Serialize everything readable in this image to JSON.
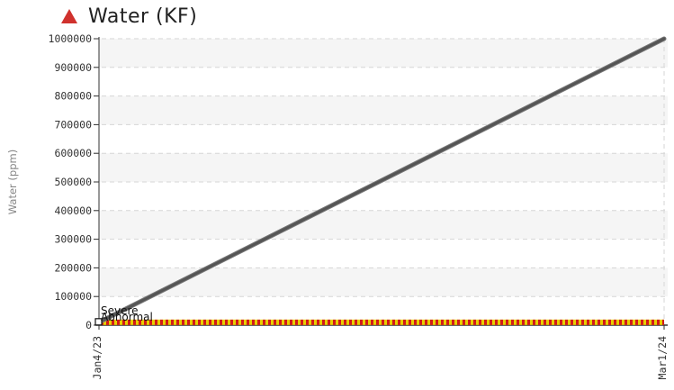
{
  "chart_data": {
    "type": "line",
    "title": "Water (KF)",
    "title_icon": "red-triangle-icon",
    "ylabel": "Water (ppm)",
    "ylim": [
      0,
      1000000
    ],
    "yticks": [
      "0",
      "100000",
      "200000",
      "300000",
      "400000",
      "500000",
      "600000",
      "700000",
      "800000",
      "900000",
      "1000000"
    ],
    "xlim": [
      "2023-01-04",
      "2024-03-01"
    ],
    "xtick_labels": [
      "Jan4/23",
      "Mar1/24"
    ],
    "grid": true,
    "series": [
      {
        "color": "#555555",
        "x": [
          "2023-01-04",
          "2024-03-01"
        ],
        "y": [
          10000,
          1000000
        ]
      }
    ],
    "limit_bands": [
      {
        "color": "#e8d000",
        "y": 0
      },
      {
        "color": "#d21a1a",
        "y": 10000
      }
    ],
    "annotations": [
      "Severe",
      "Abnormal"
    ],
    "colors": {
      "series": "#555555",
      "abnormal": "#e8d000",
      "severe": "#d21a1a",
      "title_icon": "#d0312d"
    }
  }
}
